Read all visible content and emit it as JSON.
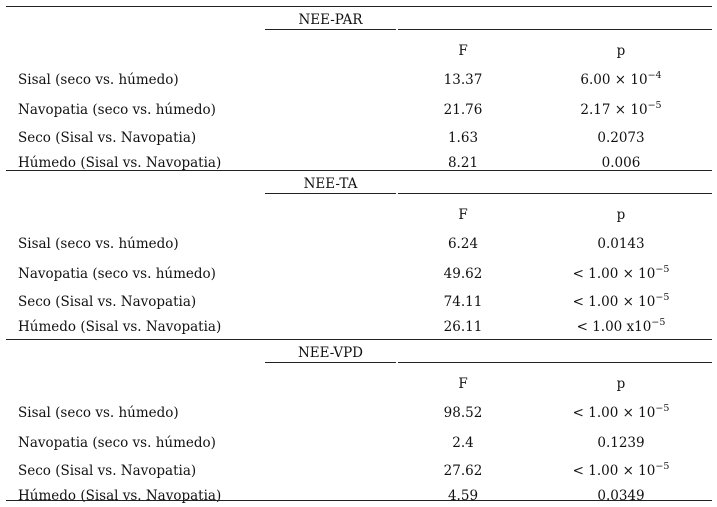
{
  "sections": [
    {
      "title": "NEE-PAR",
      "col_f": "F",
      "col_p": "p",
      "rows": [
        {
          "label": "Sisal (seco vs. húmedo)",
          "f": "13.37",
          "p_base": "6.00 × 10",
          "p_exp": "−4"
        },
        {
          "label": "Navopatia (seco vs. húmedo)",
          "f": "21.76",
          "p_base": "2.17 × 10",
          "p_exp": "−5"
        },
        {
          "label": "Seco (Sisal vs. Navopatia)",
          "f": "1.63",
          "p_base": "0.2073",
          "p_exp": ""
        },
        {
          "label": "Húmedo (Sisal vs. Navopatia)",
          "f": "8.21",
          "p_base": "0.006",
          "p_exp": ""
        }
      ]
    },
    {
      "title": "NEE-TA",
      "col_f": "F",
      "col_p": "p",
      "rows": [
        {
          "label": "Sisal (seco vs. húmedo)",
          "f": "6.24",
          "p_base": "0.0143",
          "p_exp": ""
        },
        {
          "label": "Navopatia (seco vs. húmedo)",
          "f": "49.62",
          "p_base": "< 1.00 × 10",
          "p_exp": "−5"
        },
        {
          "label": "Seco (Sisal vs. Navopatia)",
          "f": "74.11",
          "p_base": "< 1.00 × 10",
          "p_exp": "−5"
        },
        {
          "label": "Húmedo (Sisal vs. Navopatia)",
          "f": "26.11",
          "p_base": "< 1.00 x10",
          "p_exp": "−5"
        }
      ]
    },
    {
      "title": "NEE-VPD",
      "col_f": "F",
      "col_p": "p",
      "rows": [
        {
          "label": "Sisal (seco vs. húmedo)",
          "f": "98.52",
          "p_base": "< 1.00 × 10",
          "p_exp": "−5"
        },
        {
          "label": "Navopatia (seco vs. húmedo)",
          "f": "2.4",
          "p_base": "0.1239",
          "p_exp": ""
        },
        {
          "label": "Seco (Sisal vs. Navopatia)",
          "f": "27.62",
          "p_base": "< 1.00 × 10",
          "p_exp": "−5"
        },
        {
          "label": "Húmedo (Sisal vs. Navopatia)",
          "f": "4.59",
          "p_base": "0.0349",
          "p_exp": ""
        }
      ]
    }
  ]
}
